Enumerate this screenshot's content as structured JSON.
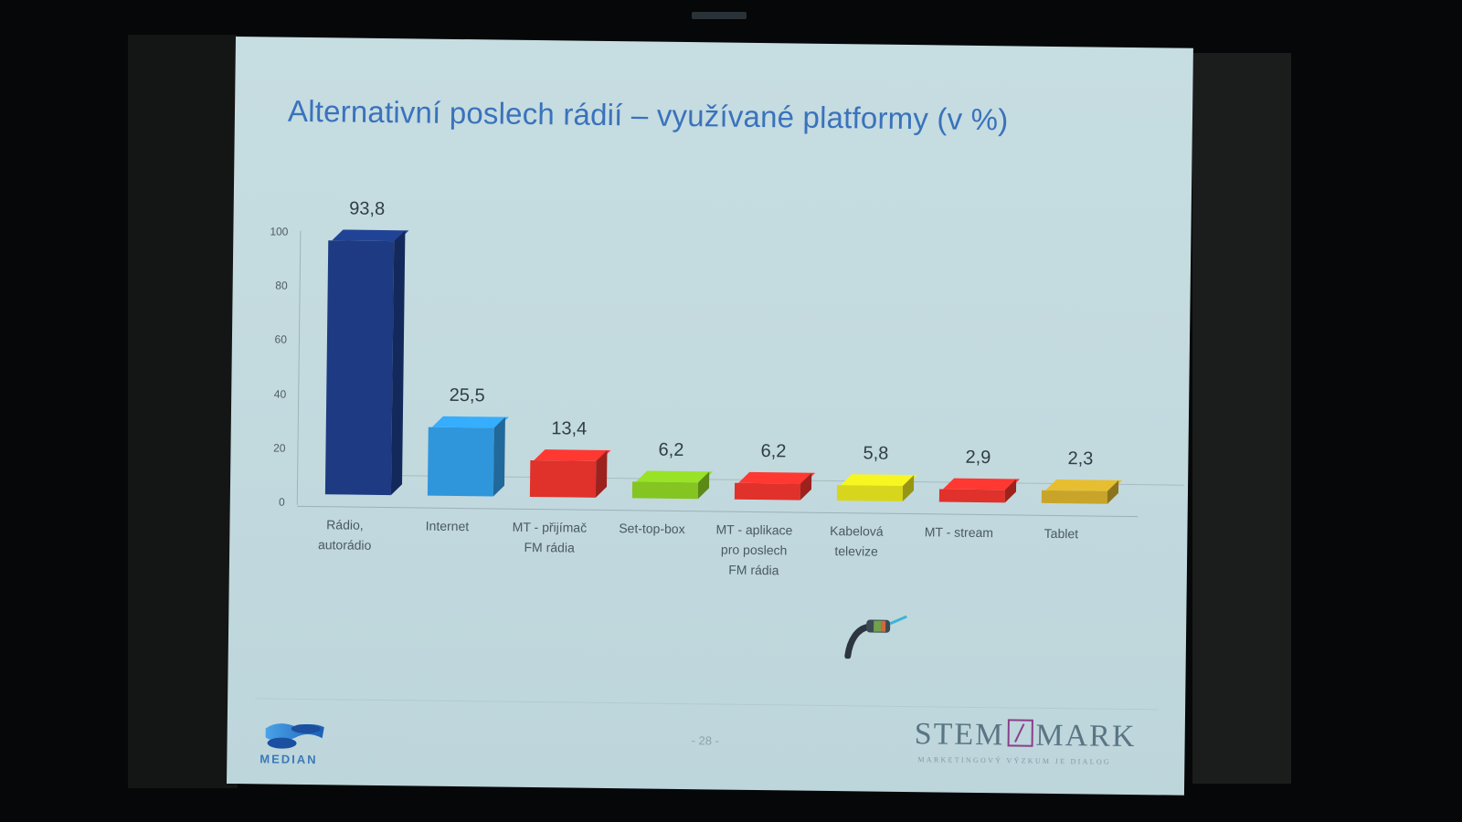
{
  "slide": {
    "title": "Alternativní poslech rádií – využívané platformy (v %)",
    "page_number": "- 28 -",
    "logos": {
      "left": "MEDIAN",
      "right_main_left": "STEM",
      "right_main_right": "MARK",
      "right_tagline": "MARKETINGOVÝ VÝZKUM JE DIALOG"
    }
  },
  "chart_data": {
    "type": "bar",
    "title": "Alternativní poslech rádií – využívané platformy (v %)",
    "xlabel": "",
    "ylabel": "",
    "ylim": [
      0,
      100
    ],
    "yticks": [
      0,
      20,
      40,
      60,
      80,
      100
    ],
    "grid": false,
    "style": "3d-columns",
    "legend": null,
    "categories": [
      "Rádio,\nautorádio",
      "Internet",
      "MT - přijímač\nFM rádia",
      "Set-top-box",
      "MT - aplikace\npro poslech\nFM rádia",
      "Kabelová\ntelevize",
      "MT - stream",
      "Tablet"
    ],
    "values": [
      93.8,
      25.5,
      13.4,
      6.2,
      6.2,
      5.8,
      2.9,
      2.3
    ],
    "value_labels": [
      "93,8",
      "25,5",
      "13,4",
      "6,2",
      "6,2",
      "5,8",
      "2,9",
      "2,3"
    ],
    "colors": [
      "#1d3a82",
      "#2f96dc",
      "#e0312b",
      "#84c521",
      "#e0312b",
      "#d8d61c",
      "#e0312b",
      "#c8a52a"
    ]
  }
}
